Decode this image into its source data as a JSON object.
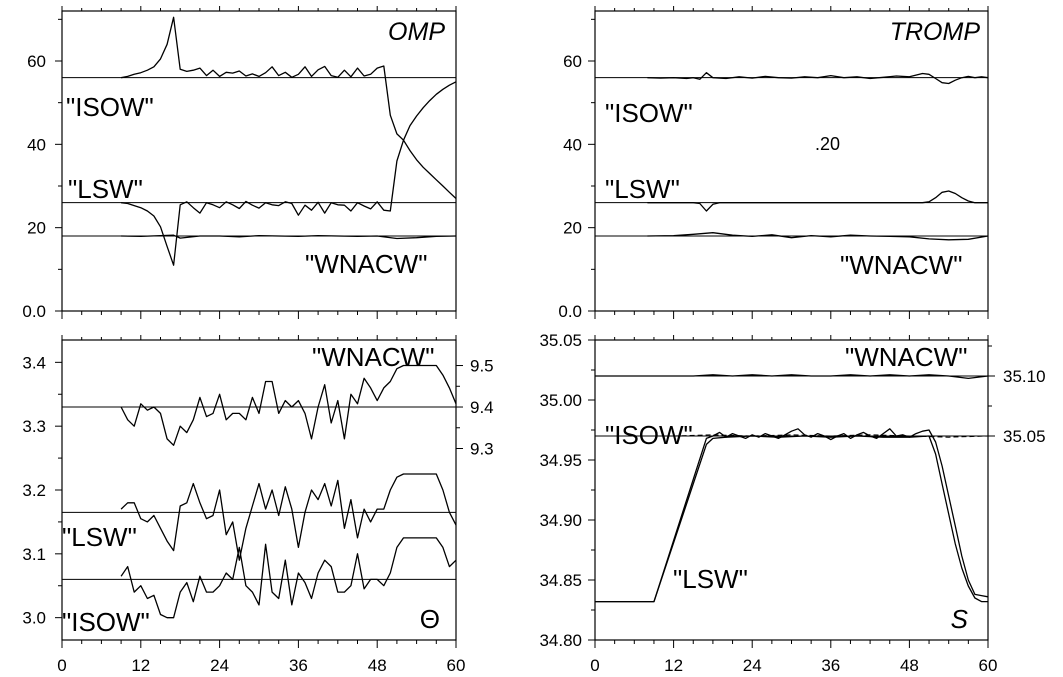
{
  "chart_data": [
    {
      "type": "line",
      "panel_label": "OMP",
      "x_ticks": [
        "0",
        "12",
        "24",
        "36",
        "48",
        "60"
      ],
      "y_ticks": [
        "0.0",
        "20",
        "40",
        "60"
      ],
      "xlim": [
        0,
        60
      ],
      "ylim": [
        0,
        72
      ],
      "reference_lines": [
        56,
        26,
        18
      ],
      "annotations": [
        "\"ISOW\"",
        "\"LSW\"",
        "\"WNACW\""
      ],
      "series": [
        {
          "x": [
            9,
            10,
            11,
            12,
            13,
            14,
            15,
            16,
            17,
            18,
            19,
            20,
            21,
            22,
            23,
            24,
            25,
            26,
            27,
            28,
            29,
            30,
            31,
            32,
            33,
            34,
            35,
            36,
            37,
            38,
            39,
            40,
            41,
            42,
            43,
            44,
            45,
            46,
            47,
            48,
            49,
            50,
            51,
            52,
            53,
            54,
            55,
            56,
            57,
            58,
            59,
            60
          ],
          "values": [
            56,
            56.3,
            56.8,
            57.2,
            57.8,
            58.6,
            60.5,
            64,
            70.5,
            58,
            57.5,
            57.8,
            58.3,
            56.5,
            57.8,
            56.3,
            57.3,
            57.1,
            57.6,
            56.4,
            56.9,
            56.3,
            57.2,
            58.6,
            56.5,
            57.3,
            56.1,
            56.8,
            58.6,
            56.3,
            57.9,
            58.7,
            56.5,
            56.1,
            57.8,
            56.2,
            58.3,
            56.4,
            56.8,
            58.3,
            58.8,
            47,
            42.5,
            41,
            44.5,
            46.8,
            48.8,
            50.5,
            52,
            53.2,
            54.2,
            55
          ]
        },
        {
          "x": [
            9,
            10,
            11,
            12,
            13,
            14,
            15,
            16,
            17,
            18,
            19,
            20,
            21,
            22,
            23,
            24,
            25,
            26,
            27,
            28,
            29,
            30,
            31,
            32,
            33,
            34,
            35,
            36,
            37,
            38,
            39,
            40,
            41,
            42,
            43,
            44,
            45,
            46,
            47,
            48,
            49,
            50,
            51,
            52,
            53,
            54,
            55,
            56,
            57,
            58,
            59,
            60
          ],
          "values": [
            26,
            25.8,
            25.3,
            24.8,
            24,
            22.8,
            20.2,
            15.5,
            11,
            25.5,
            26.2,
            24.8,
            23.5,
            26,
            25.5,
            24.8,
            26.2,
            25.5,
            24.6,
            26.3,
            25.4,
            24.7,
            26,
            25.5,
            25.3,
            26.2,
            25.8,
            23,
            25.4,
            24.2,
            26.1,
            23.5,
            26,
            25.5,
            25.4,
            24,
            26,
            25.2,
            24.5,
            26.2,
            24.2,
            24,
            36,
            41,
            38.5,
            36.3,
            34.5,
            33,
            31.5,
            30,
            28.5,
            27
          ]
        },
        {
          "x": [
            9,
            12,
            15,
            17,
            18,
            21,
            24,
            27,
            30,
            33,
            36,
            39,
            42,
            45,
            48,
            51,
            54,
            57,
            60
          ],
          "values": [
            18,
            17.9,
            18.1,
            18.2,
            17.5,
            18,
            18,
            17.8,
            18.1,
            18,
            17.9,
            18.1,
            18,
            17.9,
            18,
            17.4,
            17.6,
            17.9,
            18
          ]
        }
      ]
    },
    {
      "type": "line",
      "panel_label": "TROMP",
      "x_ticks": [
        "0",
        "12",
        "24",
        "36",
        "48",
        "60"
      ],
      "y_ticks": [
        "0.0",
        "20",
        "40",
        "60"
      ],
      "xlim": [
        0,
        60
      ],
      "ylim": [
        0,
        72
      ],
      "reference_lines": [
        56,
        26,
        18
      ],
      "annotations": [
        "\"ISOW\"",
        "\"LSW\"",
        "\"WNACW\"",
        ".20"
      ],
      "series": [
        {
          "x": [
            8,
            10,
            12,
            14,
            15,
            16,
            17,
            18,
            20,
            22,
            24,
            26,
            28,
            30,
            32,
            34,
            36,
            38,
            40,
            42,
            44,
            46,
            48,
            50,
            51,
            52,
            53,
            54,
            55,
            56,
            57,
            58,
            59,
            60
          ],
          "values": [
            56,
            55.9,
            56,
            55.8,
            56,
            55.6,
            57.2,
            56,
            55.8,
            56.2,
            55.9,
            56.3,
            56,
            55.9,
            56.2,
            56,
            56.5,
            56,
            56.2,
            55.8,
            56.1,
            56.4,
            56.2,
            57,
            56.8,
            55.8,
            54.8,
            54.6,
            55.4,
            56,
            56.3,
            56,
            56.2,
            56
          ]
        },
        {
          "x": [
            8,
            12,
            15,
            16,
            17,
            18,
            19,
            22,
            26,
            30,
            34,
            38,
            42,
            46,
            48,
            50,
            51,
            52,
            53,
            54,
            55,
            56,
            57,
            58,
            59,
            60
          ],
          "values": [
            26,
            26,
            26,
            25.8,
            24,
            25.6,
            26,
            26,
            26,
            26,
            26,
            26,
            26,
            26,
            26,
            26,
            26.2,
            27.2,
            28.5,
            28.8,
            28.2,
            27.2,
            26.4,
            26,
            26,
            26
          ]
        },
        {
          "x": [
            8,
            12,
            15,
            18,
            21,
            24,
            27,
            30,
            33,
            36,
            39,
            42,
            45,
            48,
            51,
            54,
            57,
            60
          ],
          "values": [
            18,
            18.1,
            18.4,
            18.8,
            18.2,
            17.9,
            18.3,
            17.6,
            18.1,
            17.8,
            18.2,
            18,
            17.9,
            17.8,
            17.3,
            17.1,
            17.2,
            18
          ]
        }
      ]
    },
    {
      "type": "line",
      "panel_label": "Θ",
      "x_ticks": [
        "0",
        "12",
        "24",
        "36",
        "48",
        "60"
      ],
      "y_ticks": [
        "3.0",
        "3.1",
        "3.2",
        "3.3",
        "3.4"
      ],
      "y2_ticks": [
        "9.3",
        "9.4",
        "9.5"
      ],
      "xlim": [
        0,
        60
      ],
      "ylim": [
        2.965,
        3.435
      ],
      "reference_lines": [
        3.33,
        3.165,
        3.06
      ],
      "annotations": [
        "\"WNACW\"",
        "\"LSW\"",
        "\"ISOW\""
      ],
      "series": [
        {
          "x": [
            9,
            10,
            11,
            12,
            13,
            14,
            15,
            16,
            17,
            18,
            19,
            20,
            21,
            22,
            23,
            24,
            25,
            26,
            27,
            28,
            29,
            30,
            31,
            32,
            33,
            34,
            35,
            36,
            37,
            38,
            39,
            40,
            41,
            42,
            43,
            44,
            45,
            46,
            47,
            48,
            49,
            50,
            51,
            52,
            53,
            54,
            55,
            56,
            57,
            58,
            59,
            60
          ],
          "values": [
            3.33,
            3.31,
            3.3,
            3.335,
            3.325,
            3.33,
            3.32,
            3.28,
            3.27,
            3.3,
            3.29,
            3.31,
            3.345,
            3.315,
            3.32,
            3.35,
            3.31,
            3.32,
            3.32,
            3.31,
            3.345,
            3.32,
            3.37,
            3.37,
            3.32,
            3.34,
            3.33,
            3.34,
            3.32,
            3.28,
            3.33,
            3.365,
            3.305,
            3.34,
            3.28,
            3.35,
            3.335,
            3.375,
            3.36,
            3.34,
            3.36,
            3.37,
            3.39,
            3.395,
            3.395,
            3.395,
            3.395,
            3.395,
            3.395,
            3.38,
            3.36,
            3.335
          ]
        },
        {
          "x": [
            9,
            10,
            11,
            12,
            13,
            14,
            15,
            16,
            17,
            18,
            19,
            20,
            21,
            22,
            23,
            24,
            25,
            26,
            27,
            28,
            29,
            30,
            31,
            32,
            33,
            34,
            35,
            36,
            37,
            38,
            39,
            40,
            41,
            42,
            43,
            44,
            45,
            46,
            47,
            48,
            49,
            50,
            51,
            52,
            53,
            54,
            55,
            56,
            57,
            58,
            59,
            60
          ],
          "values": [
            3.17,
            3.18,
            3.18,
            3.155,
            3.15,
            3.16,
            3.14,
            3.12,
            3.105,
            3.175,
            3.18,
            3.21,
            3.18,
            3.155,
            3.16,
            3.2,
            3.13,
            3.15,
            3.09,
            3.14,
            3.175,
            3.21,
            3.17,
            3.2,
            3.16,
            3.205,
            3.17,
            3.11,
            3.165,
            3.2,
            3.185,
            3.21,
            3.175,
            3.215,
            3.14,
            3.185,
            3.125,
            3.17,
            3.15,
            3.17,
            3.17,
            3.2,
            3.22,
            3.225,
            3.225,
            3.225,
            3.225,
            3.225,
            3.225,
            3.2,
            3.165,
            3.145
          ]
        },
        {
          "x": [
            9,
            10,
            11,
            12,
            13,
            14,
            15,
            16,
            17,
            18,
            19,
            20,
            21,
            22,
            23,
            24,
            25,
            26,
            27,
            28,
            29,
            30,
            31,
            32,
            33,
            34,
            35,
            36,
            37,
            38,
            39,
            40,
            41,
            42,
            43,
            44,
            45,
            46,
            47,
            48,
            49,
            50,
            51,
            52,
            53,
            54,
            55,
            56,
            57,
            58,
            59,
            60
          ],
          "values": [
            3.065,
            3.08,
            3.04,
            3.05,
            3.03,
            3.035,
            3.005,
            3,
            3,
            3.04,
            3.055,
            3.025,
            3.065,
            3.04,
            3.04,
            3.05,
            3.07,
            3.06,
            3.11,
            3.05,
            3.04,
            3.02,
            3.115,
            3.04,
            3.03,
            3.09,
            3.02,
            3.07,
            3.055,
            3.03,
            3.07,
            3.09,
            3.08,
            3.04,
            3.04,
            3.05,
            3.1,
            3.045,
            3.06,
            3.06,
            3.05,
            3.07,
            3.11,
            3.125,
            3.125,
            3.125,
            3.125,
            3.125,
            3.125,
            3.11,
            3.08,
            3.09
          ]
        }
      ]
    },
    {
      "type": "line",
      "panel_label": "S",
      "x_ticks": [
        "0",
        "12",
        "24",
        "36",
        "48",
        "60"
      ],
      "y_ticks": [
        "34.80",
        "34.85",
        "34.90",
        "34.95",
        "35.00",
        "35.05"
      ],
      "y2_ticks": [
        "35.05",
        "35.10"
      ],
      "xlim": [
        0,
        60
      ],
      "ylim": [
        34.8,
        35.05
      ],
      "reference_lines": [
        35.02,
        34.97
      ],
      "annotations": [
        "\"WNACW\"",
        "\"ISOW\"",
        "\"LSW\""
      ],
      "series": [
        {
          "x": [
            0,
            3,
            6,
            9,
            12,
            15,
            18,
            21,
            24,
            27,
            30,
            33,
            36,
            39,
            42,
            45,
            48,
            51,
            54,
            57,
            60
          ],
          "values": [
            35.02,
            35.02,
            35.02,
            35.02,
            35.02,
            35.02,
            35.021,
            35.02,
            35.021,
            35.02,
            35.021,
            35.02,
            35.02,
            35.021,
            35.02,
            35.021,
            35.02,
            35.021,
            35.02,
            35.018,
            35.02
          ]
        },
        {
          "x": [
            0,
            9,
            17,
            18,
            19,
            20,
            21,
            22,
            23,
            24,
            25,
            26,
            27,
            28,
            29,
            30,
            31,
            32,
            33,
            34,
            35,
            36,
            37,
            38,
            39,
            40,
            41,
            42,
            43,
            44,
            45,
            46,
            47,
            48,
            49,
            50,
            51,
            52,
            53,
            54,
            55,
            56,
            57,
            58,
            59,
            60
          ],
          "values": [
            34.832,
            34.832,
            34.968,
            34.97,
            34.973,
            34.969,
            34.972,
            34.97,
            34.968,
            34.971,
            34.969,
            34.972,
            34.97,
            34.968,
            34.971,
            34.974,
            34.976,
            34.971,
            34.969,
            34.972,
            34.97,
            34.967,
            34.97,
            34.972,
            34.968,
            34.971,
            34.973,
            34.97,
            34.968,
            34.972,
            34.976,
            34.97,
            34.971,
            34.969,
            34.972,
            34.974,
            34.975,
            34.965,
            34.945,
            34.92,
            34.895,
            34.87,
            34.85,
            34.838,
            34.837,
            34.836
          ]
        },
        {
          "x": [
            0,
            9,
            17,
            18,
            20,
            24,
            28,
            32,
            36,
            40,
            44,
            48,
            51,
            52,
            53,
            54,
            55,
            56,
            57,
            58,
            59,
            60
          ],
          "values": [
            34.832,
            34.832,
            34.963,
            34.968,
            34.969,
            34.97,
            34.969,
            34.97,
            34.969,
            34.97,
            34.969,
            34.969,
            34.97,
            34.955,
            34.93,
            34.905,
            34.88,
            34.86,
            34.845,
            34.835,
            34.832,
            34.832
          ]
        },
        {
          "x": [
            12,
            18,
            24,
            30,
            36,
            42,
            48,
            54,
            60
          ],
          "values": [
            34.97,
            34.971,
            34.97,
            34.971,
            34.97,
            34.971,
            34.97,
            34.969,
            34.97
          ],
          "dashed": true
        }
      ]
    }
  ]
}
